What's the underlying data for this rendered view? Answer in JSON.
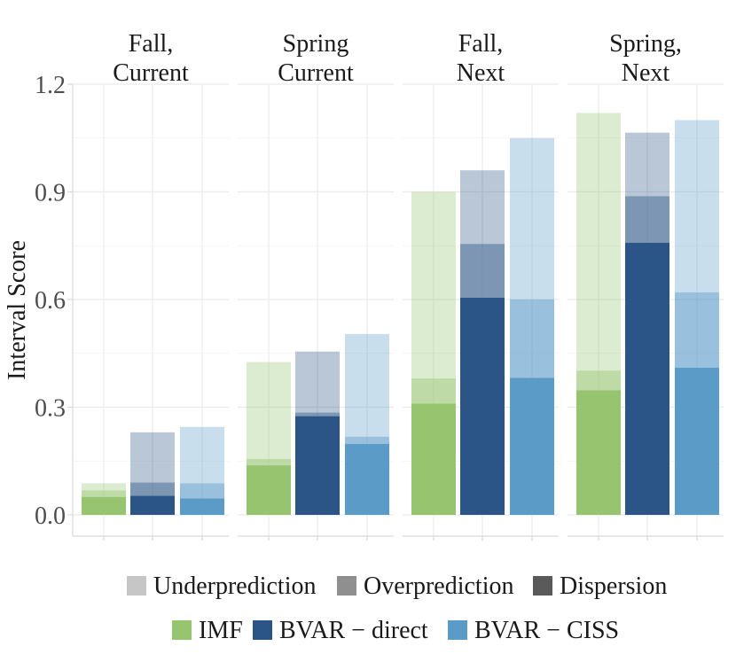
{
  "chart_data": {
    "type": "bar",
    "subtype": "faceted stacked bar",
    "ylabel": "Interval Score",
    "xlabel": "",
    "ylim": [
      -0.05,
      1.2
    ],
    "yticks": [
      "0.0",
      "0.3",
      "0.6",
      "0.9",
      "1.2"
    ],
    "ytick_values": [
      0.0,
      0.3,
      0.6,
      0.9,
      1.2
    ],
    "grid": true,
    "facets": [
      {
        "title": [
          "Fall,",
          "Current"
        ],
        "bars": [
          {
            "model": "IMF",
            "dispersion": 0.05,
            "overprediction": 0.018,
            "underprediction": 0.02
          },
          {
            "model": "BVAR - direct",
            "dispersion": 0.053,
            "overprediction": 0.037,
            "underprediction": 0.14
          },
          {
            "model": "BVAR - CISS",
            "dispersion": 0.046,
            "overprediction": 0.042,
            "underprediction": 0.157
          }
        ]
      },
      {
        "title": [
          "Spring",
          "Current"
        ],
        "bars": [
          {
            "model": "IMF",
            "dispersion": 0.138,
            "overprediction": 0.018,
            "underprediction": 0.27
          },
          {
            "model": "BVAR - direct",
            "dispersion": 0.275,
            "overprediction": 0.01,
            "underprediction": 0.17
          },
          {
            "model": "BVAR - CISS",
            "dispersion": 0.198,
            "overprediction": 0.02,
            "underprediction": 0.286
          }
        ]
      },
      {
        "title": [
          "Fall,",
          "Next"
        ],
        "bars": [
          {
            "model": "IMF",
            "dispersion": 0.31,
            "overprediction": 0.07,
            "underprediction": 0.52
          },
          {
            "model": "BVAR - direct",
            "dispersion": 0.605,
            "overprediction": 0.15,
            "underprediction": 0.205
          },
          {
            "model": "BVAR - CISS",
            "dispersion": 0.382,
            "overprediction": 0.218,
            "underprediction": 0.45
          }
        ]
      },
      {
        "title": [
          "Spring,",
          "Next"
        ],
        "bars": [
          {
            "model": "IMF",
            "dispersion": 0.347,
            "overprediction": 0.055,
            "underprediction": 0.718
          },
          {
            "model": "BVAR - direct",
            "dispersion": 0.758,
            "overprediction": 0.13,
            "underprediction": 0.177
          },
          {
            "model": "BVAR - CISS",
            "dispersion": 0.41,
            "overprediction": 0.21,
            "underprediction": 0.48
          }
        ]
      }
    ],
    "models": [
      {
        "name": "IMF",
        "color": "#96c46f"
      },
      {
        "name": "BVAR − direct",
        "color": "#2b5586"
      },
      {
        "name": "BVAR − CISS",
        "color": "#5b9bc8"
      }
    ],
    "components": [
      {
        "name": "Underprediction",
        "alpha": 0.35,
        "legend_color": "#c6c6c6"
      },
      {
        "name": "Overprediction",
        "alpha": 0.65,
        "legend_color": "#8f8f8f"
      },
      {
        "name": "Dispersion",
        "alpha": 1.0,
        "legend_color": "#5a5a5a"
      }
    ],
    "legend_placement": "bottom"
  }
}
